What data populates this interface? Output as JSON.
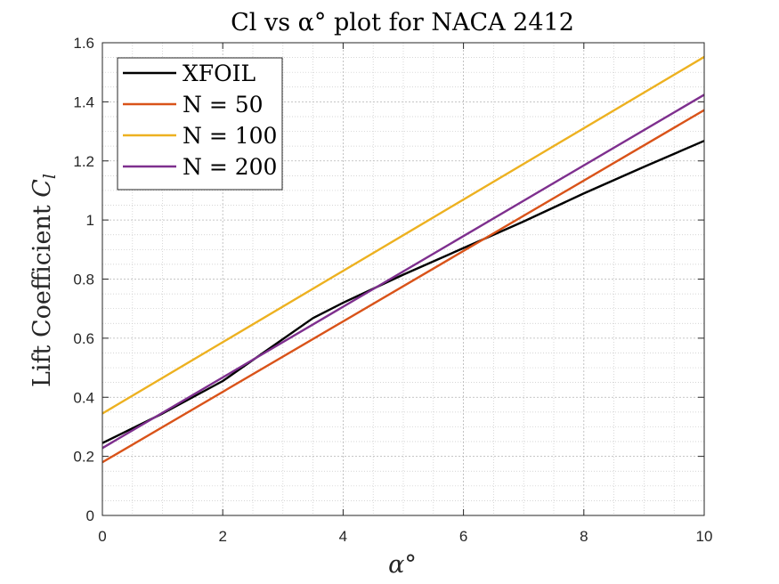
{
  "chart_data": {
    "type": "line",
    "title": "Cl vs α° plot for NACA 2412",
    "xlabel": "α°",
    "ylabel": "Lift Coefficient Cl",
    "ylabel_main": "Lift Coefficient ",
    "ylabel_symbol": "C",
    "ylabel_sub": "l",
    "xlim": [
      0,
      10
    ],
    "ylim": [
      0,
      1.6
    ],
    "xticks": [
      0,
      2,
      4,
      6,
      8,
      10
    ],
    "xtick_labels": [
      "0",
      "2",
      "4",
      "6",
      "8",
      "10"
    ],
    "yticks": [
      0,
      0.2,
      0.4,
      0.6,
      0.8,
      1.0,
      1.2,
      1.4,
      1.6
    ],
    "ytick_labels": [
      "0",
      "0.2",
      "0.4",
      "0.6",
      "0.8",
      "1",
      "1.2",
      "1.4",
      "1.6"
    ],
    "grid": "major and minor, dotted",
    "legend_position": "top-left",
    "series": [
      {
        "name": "XFOIL",
        "color": "#000000",
        "x": [
          0,
          1,
          2,
          3.5,
          4,
          5,
          6,
          7,
          8,
          9,
          10
        ],
        "y": [
          0.245,
          0.345,
          0.455,
          0.668,
          0.72,
          0.815,
          0.905,
          0.995,
          1.09,
          1.18,
          1.268
        ]
      },
      {
        "name": "N = 50",
        "color": "#d95319",
        "x": [
          0,
          10
        ],
        "y": [
          0.18,
          1.372
        ]
      },
      {
        "name": "N = 100",
        "color": "#edb120",
        "x": [
          0,
          10
        ],
        "y": [
          0.345,
          1.552
        ]
      },
      {
        "name": "N = 200",
        "color": "#7e2f8e",
        "x": [
          0,
          10
        ],
        "y": [
          0.228,
          1.424
        ]
      }
    ]
  }
}
